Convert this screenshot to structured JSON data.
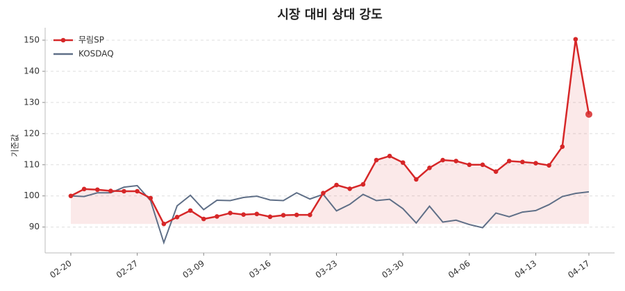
{
  "chart_data": {
    "type": "line",
    "title": "시장 대비 상대 강도",
    "y_label": "기준값",
    "categories": [
      "02-20",
      null,
      null,
      null,
      null,
      "02-27",
      null,
      null,
      null,
      null,
      "03-09",
      null,
      null,
      null,
      null,
      "03-16",
      null,
      null,
      null,
      null,
      "03-23",
      null,
      null,
      null,
      null,
      "03-30",
      null,
      null,
      null,
      null,
      "04-06",
      null,
      null,
      null,
      null,
      "04-13",
      null,
      null,
      null,
      "04-17"
    ],
    "series": [
      {
        "name": "무림SP",
        "color": "#d62728",
        "markers": true,
        "fill": true,
        "values": [
          100,
          102.2,
          102,
          101.6,
          101.5,
          101.5,
          99.3,
          91,
          93.2,
          95.3,
          92.6,
          93.4,
          94.5,
          94,
          94.2,
          93.3,
          93.8,
          93.9,
          93.9,
          100.9,
          103.5,
          102.3,
          103.7,
          111.5,
          112.8,
          110.7,
          105.3,
          109,
          111.5,
          111.2,
          110,
          110,
          107.8,
          111.2,
          110.9,
          110.5,
          109.8,
          115.8,
          150.3,
          126.2
        ]
      },
      {
        "name": "KOSDAQ",
        "color": "#5f6f87",
        "markers": false,
        "fill": false,
        "values": [
          100,
          99.8,
          101,
          101,
          102.8,
          103.3,
          98.5,
          85,
          96.8,
          100.2,
          95.6,
          98.6,
          98.5,
          99.5,
          99.9,
          98.7,
          98.5,
          101,
          99,
          100.5,
          95.2,
          97.3,
          100.5,
          98.5,
          98.9,
          95.9,
          91.3,
          96.7,
          91.6,
          92.2,
          90.8,
          89.8,
          94.5,
          93.3,
          94.8,
          95.3,
          97.2,
          99.8,
          100.8,
          101.3
        ]
      }
    ],
    "ylim": [
      81.7,
      154
    ],
    "yticks": [
      90,
      100,
      110,
      120,
      130,
      140,
      150
    ],
    "grid": true,
    "legend": "upper left"
  }
}
